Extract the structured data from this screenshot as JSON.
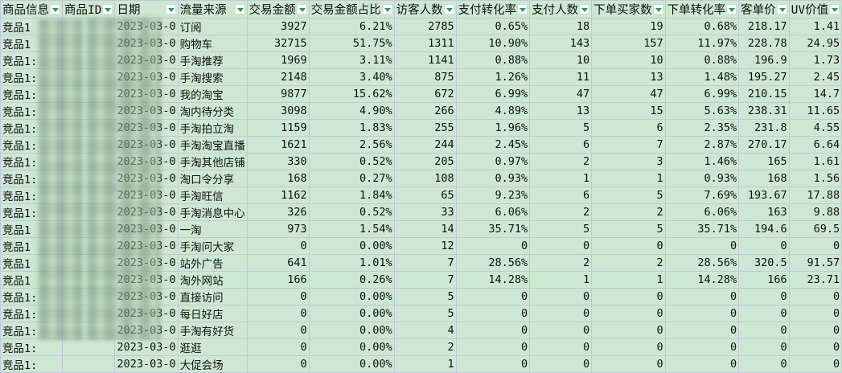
{
  "headers": [
    "商品信息",
    "商品ID",
    "日期",
    "流量来源",
    "交易金额",
    "交易金额占比",
    "访客人数",
    "支付转化率",
    "支付人数",
    "下单买家数",
    "下单转化率",
    "客单价",
    "UV价值"
  ],
  "rows": [
    [
      "竞品1",
      "",
      "2023-03-0",
      "订阅",
      "3927",
      "6.21%",
      "2785",
      "0.65%",
      "18",
      "19",
      "0.68%",
      "218.17",
      "1.41"
    ],
    [
      "竞品1",
      "",
      "2023-03-0",
      "购物车",
      "32715",
      "51.75%",
      "1311",
      "10.90%",
      "143",
      "157",
      "11.97%",
      "228.78",
      "24.95"
    ],
    [
      "竞品1:",
      "",
      "2023-03-0",
      "手淘推荐",
      "1969",
      "3.11%",
      "1141",
      "0.88%",
      "10",
      "10",
      "0.88%",
      "196.9",
      "1.73"
    ],
    [
      "竞品1:",
      "",
      "2023-03-0",
      "手淘搜索",
      "2148",
      "3.40%",
      "875",
      "1.26%",
      "11",
      "13",
      "1.48%",
      "195.27",
      "2.45"
    ],
    [
      "竞品1:",
      "",
      "2023-03-0",
      "我的淘宝",
      "9877",
      "15.62%",
      "672",
      "6.99%",
      "47",
      "47",
      "6.99%",
      "210.15",
      "14.7"
    ],
    [
      "竞品1:",
      "",
      "2023-03-0",
      "淘内待分类",
      "3098",
      "4.90%",
      "266",
      "4.89%",
      "13",
      "15",
      "5.63%",
      "238.31",
      "11.65"
    ],
    [
      "竞品1:",
      "",
      "2023-03-0",
      "手淘拍立淘",
      "1159",
      "1.83%",
      "255",
      "1.96%",
      "5",
      "6",
      "2.35%",
      "231.8",
      "4.55"
    ],
    [
      "竞品1:",
      "",
      "2023-03-0",
      "手淘淘宝直播",
      "1621",
      "2.56%",
      "244",
      "2.45%",
      "6",
      "7",
      "2.87%",
      "270.17",
      "6.64"
    ],
    [
      "竞品1:",
      "",
      "2023-03-0",
      "手淘其他店铺",
      "330",
      "0.52%",
      "205",
      "0.97%",
      "2",
      "3",
      "1.46%",
      "165",
      "1.61"
    ],
    [
      "竞品1:",
      "",
      "2023-03-0",
      "淘口令分享",
      "168",
      "0.27%",
      "108",
      "0.93%",
      "1",
      "1",
      "0.93%",
      "168",
      "1.56"
    ],
    [
      "竞品1:",
      "",
      "2023-03-0",
      "手淘旺信",
      "1162",
      "1.84%",
      "65",
      "9.23%",
      "6",
      "5",
      "7.69%",
      "193.67",
      "17.88"
    ],
    [
      "竞品1:",
      "",
      "2023-03-0",
      "手淘消息中心",
      "326",
      "0.52%",
      "33",
      "6.06%",
      "2",
      "2",
      "6.06%",
      "163",
      "9.88"
    ],
    [
      "竞品1",
      "",
      "2023-03-0",
      "一淘",
      "973",
      "1.54%",
      "14",
      "35.71%",
      "5",
      "5",
      "35.71%",
      "194.6",
      "69.5"
    ],
    [
      "竞品1",
      "",
      "2023-03-0",
      "手淘问大家",
      "0",
      "0.00%",
      "12",
      "0",
      "0",
      "0",
      "0",
      "0",
      "0"
    ],
    [
      "竞品1",
      "",
      "2023-03-0",
      "站外广告",
      "641",
      "1.01%",
      "7",
      "28.56%",
      "2",
      "2",
      "28.56%",
      "320.5",
      "91.57"
    ],
    [
      "竞品1",
      "",
      "2023-03-0",
      "淘外网站",
      "166",
      "0.26%",
      "7",
      "14.28%",
      "1",
      "1",
      "14.28%",
      "166",
      "23.71"
    ],
    [
      "竞品1:",
      "",
      "2023-03-0",
      "直接访问",
      "0",
      "0.00%",
      "5",
      "0",
      "0",
      "0",
      "0",
      "0",
      "0"
    ],
    [
      "竞品1:",
      "",
      "2023-03-0",
      "每日好店",
      "0",
      "0.00%",
      "5",
      "0",
      "0",
      "0",
      "0",
      "0",
      "0"
    ],
    [
      "竞品1:",
      "",
      "2023-03-0",
      "手淘有好货",
      "0",
      "0.00%",
      "4",
      "0",
      "0",
      "0",
      "0",
      "0",
      "0"
    ],
    [
      "竞品1:",
      "",
      "2023-03-0",
      "逛逛",
      "0",
      "0.00%",
      "2",
      "0",
      "0",
      "0",
      "0",
      "0",
      "0"
    ],
    [
      "竞品1:",
      "",
      "2023-03-0",
      "大促会场",
      "0",
      "0.00%",
      "1",
      "0",
      "0",
      "0",
      "0",
      "0",
      "0"
    ]
  ],
  "colors": {
    "background": "#cde8d2",
    "grid": "#c3c6dc",
    "filter_arrow": "#1aa06a"
  }
}
